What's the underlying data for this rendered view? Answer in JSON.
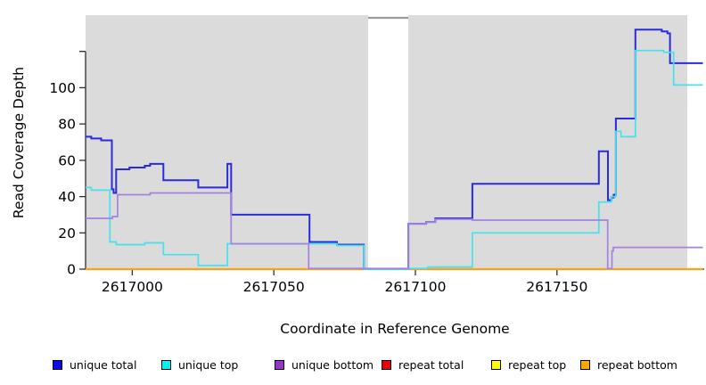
{
  "chart_data": {
    "type": "line",
    "step_style": "step-after",
    "title": "",
    "xlabel": "Coordinate in Reference Genome",
    "ylabel": "Read Coverage Depth",
    "xlim": [
      2616983.5,
      2617202
    ],
    "ylim": [
      0,
      140
    ],
    "x_ticks": [
      2617000,
      2617050,
      2617100,
      2617150
    ],
    "y_ticks_labeled": [
      0,
      20,
      40,
      60,
      80,
      100
    ],
    "y_ticks_all": [
      0,
      20,
      40,
      60,
      80,
      100,
      120
    ],
    "grid": false,
    "legend_position": "bottom",
    "region_color": "#DBDBDB",
    "gap_border_color": "#9A9A9A",
    "axis_color": "#2E2E2E",
    "aligned_regions": [
      [
        2616983.5,
        2617083.3
      ],
      [
        2617097.5,
        2617196
      ]
    ],
    "uncovered_gap": [
      2617083.3,
      2617097.5
    ],
    "series": [
      {
        "name": "repeat total",
        "color": "#E02020",
        "width": 1.4,
        "points": [
          [
            2616983.5,
            0
          ]
        ]
      },
      {
        "name": "repeat top",
        "color": "#F0F020",
        "width": 1.4,
        "points": [
          [
            2616983.5,
            0
          ]
        ]
      },
      {
        "name": "repeat bottom",
        "color": "#FFA117",
        "width": 2.2,
        "points": [
          [
            2616983.5,
            0
          ]
        ]
      },
      {
        "name": "unique total",
        "color": "#2B2BDE",
        "width": 2,
        "points": [
          [
            2616983.5,
            73
          ],
          [
            2616985.5,
            72
          ],
          [
            2616989,
            71
          ],
          [
            2616992.8,
            44
          ],
          [
            2616993.4,
            42
          ],
          [
            2616994.3,
            55
          ],
          [
            2616999,
            56
          ],
          [
            2617004.4,
            57
          ],
          [
            2617006.3,
            58
          ],
          [
            2617011,
            49
          ],
          [
            2617023.3,
            45
          ],
          [
            2617033.6,
            58
          ],
          [
            2617034.9,
            30
          ],
          [
            2617062.6,
            15
          ],
          [
            2617072.3,
            13.5
          ],
          [
            2617081.8,
            0
          ],
          [
            2617097.5,
            25
          ],
          [
            2617103.8,
            26
          ],
          [
            2617107,
            28
          ],
          [
            2617120.1,
            47
          ],
          [
            2617164.8,
            65
          ],
          [
            2617168,
            38
          ],
          [
            2617169.2,
            39.5
          ],
          [
            2617170,
            41
          ],
          [
            2617170.8,
            83
          ],
          [
            2617177.7,
            132
          ],
          [
            2617187,
            131
          ],
          [
            2617189,
            130
          ],
          [
            2617189.9,
            113.5
          ]
        ]
      },
      {
        "name": "unique top",
        "color": "#45E2EC",
        "width": 1.7,
        "points": [
          [
            2616983.5,
            45
          ],
          [
            2616985.5,
            43.5
          ],
          [
            2616992.1,
            15
          ],
          [
            2616994.3,
            13.5
          ],
          [
            2617004.4,
            14.5
          ],
          [
            2617011,
            8
          ],
          [
            2617023.3,
            2
          ],
          [
            2617033.6,
            14
          ],
          [
            2617072.3,
            13
          ],
          [
            2617081.8,
            0
          ],
          [
            2617097.5,
            0.4
          ],
          [
            2617104.4,
            1.2
          ],
          [
            2617120.1,
            20
          ],
          [
            2617164.8,
            37
          ],
          [
            2617169.2,
            40
          ],
          [
            2617170.8,
            76
          ],
          [
            2617172.6,
            73
          ],
          [
            2617177.7,
            120.5
          ],
          [
            2617187.7,
            119.5
          ],
          [
            2617191.2,
            101.5
          ]
        ]
      },
      {
        "name": "unique bottom",
        "color": "#A482DE",
        "width": 1.7,
        "points": [
          [
            2616983.5,
            28
          ],
          [
            2616993,
            29
          ],
          [
            2616994.8,
            41
          ],
          [
            2617006.3,
            42
          ],
          [
            2617034.9,
            14
          ],
          [
            2617062.3,
            0.4
          ],
          [
            2617097.5,
            25
          ],
          [
            2617103.8,
            26
          ],
          [
            2617107,
            27.5
          ],
          [
            2617120.1,
            27
          ],
          [
            2617167.9,
            0.4
          ],
          [
            2617169.4,
            10
          ],
          [
            2617169.9,
            12
          ]
        ]
      }
    ],
    "legend": [
      {
        "label": "unique total",
        "color": "#0909EC"
      },
      {
        "label": "unique top",
        "color": "#00F2F2"
      },
      {
        "label": "unique bottom",
        "color": "#9932CC"
      },
      {
        "label": "repeat total",
        "color": "#EE0000"
      },
      {
        "label": "repeat top",
        "color": "#FFFF00"
      },
      {
        "label": "repeat bottom",
        "color": "#FFA500"
      }
    ]
  }
}
